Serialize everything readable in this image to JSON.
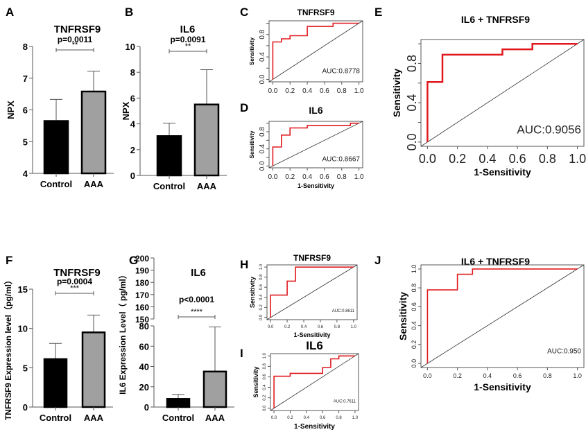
{
  "figure": {
    "panel_labels": [
      "A",
      "B",
      "C",
      "D",
      "E",
      "F",
      "G",
      "H",
      "I",
      "J"
    ]
  },
  "colors": {
    "control_bar": "#000000",
    "aaa_bar": "#a0a0a0",
    "roc_line": "#e0191e",
    "axis": "#555555",
    "diagonal": "#333333"
  },
  "chart_data": [
    {
      "id": "A",
      "type": "bar",
      "title": "TNFRSF9",
      "ylabel": "NPX",
      "xlabel": "",
      "categories": [
        "Control",
        "AAA"
      ],
      "values": [
        5.65,
        6.58
      ],
      "errors": [
        0.68,
        0.64
      ],
      "ylim": [
        4,
        8
      ],
      "yticks": [
        4,
        5,
        6,
        7,
        8
      ],
      "pvalue": "p=0.0011",
      "significance": "**"
    },
    {
      "id": "B",
      "type": "bar",
      "title": "IL6",
      "ylabel": "NPX",
      "xlabel": "",
      "categories": [
        "Control",
        "AAA"
      ],
      "values": [
        3.05,
        5.5
      ],
      "errors": [
        1.0,
        2.7
      ],
      "ylim": [
        0,
        10
      ],
      "yticks": [
        0,
        2,
        4,
        6,
        8,
        10
      ],
      "pvalue": "p=0.0091",
      "significance": "**"
    },
    {
      "id": "C",
      "type": "line",
      "title": "TNFRSF9",
      "xlabel": "1-Sensitivity",
      "ylabel": "Sensitivity",
      "auc": "AUC:0.8778",
      "xlim": [
        0,
        1
      ],
      "ylim": [
        0,
        1
      ],
      "xticks": [
        "0.0",
        "0.2",
        "0.4",
        "0.6",
        "0.8",
        "1.0"
      ],
      "yticks": [
        "0.0",
        "0.4",
        "0.8"
      ],
      "x": [
        0,
        0,
        0.1,
        0.1,
        0.2,
        0.2,
        0.4,
        0.4,
        0.7,
        0.7,
        1.0
      ],
      "y": [
        0,
        0.667,
        0.667,
        0.722,
        0.722,
        0.778,
        0.778,
        0.944,
        0.944,
        1.0,
        1.0
      ]
    },
    {
      "id": "D",
      "type": "line",
      "title": "IL6",
      "xlabel": "1-Sensitivity",
      "ylabel": "Sensitivity",
      "auc": "AUC:0.8667",
      "xlim": [
        0,
        1
      ],
      "ylim": [
        0,
        1
      ],
      "xticks": [
        "0.0",
        "0.2",
        "0.4",
        "0.6",
        "0.8",
        "1.0"
      ],
      "yticks": [
        "0.0",
        "0.4",
        "0.8"
      ],
      "x": [
        0,
        0,
        0.1,
        0.1,
        0.2,
        0.2,
        0.4,
        0.4,
        0.9,
        0.9,
        1.0
      ],
      "y": [
        0,
        0.444,
        0.444,
        0.722,
        0.722,
        0.889,
        0.889,
        0.944,
        0.944,
        1.0,
        1.0
      ]
    },
    {
      "id": "E",
      "type": "line",
      "title": "IL6 + TNFRSF9",
      "xlabel": "1-Sensitivity",
      "ylabel": "Sensitivity",
      "auc": "AUC:0.9056",
      "xlim": [
        0,
        1
      ],
      "ylim": [
        0,
        1
      ],
      "xticks": [
        "0.0",
        "0.2",
        "0.4",
        "0.6",
        "0.8",
        "1.0"
      ],
      "yticks": [
        "0.0",
        "0.4",
        "0.8"
      ],
      "x": [
        0,
        0,
        0.1,
        0.1,
        0.5,
        0.5,
        0.7,
        0.7,
        1.0
      ],
      "y": [
        0,
        0.611,
        0.611,
        0.889,
        0.889,
        0.944,
        0.944,
        1.0,
        1.0
      ]
    },
    {
      "id": "F",
      "type": "bar",
      "title": "TNFRSF9",
      "ylabel": "TNFRSF9 Expression level（pg/ml）",
      "xlabel": "",
      "categories": [
        "Control",
        "AAA"
      ],
      "values": [
        6.1,
        9.5
      ],
      "errors": [
        2.0,
        2.2
      ],
      "ylim": [
        0,
        15
      ],
      "yticks": [
        0,
        5,
        10,
        15
      ],
      "pvalue": "p=0.0004",
      "significance": "***"
    },
    {
      "id": "G",
      "type": "bar",
      "title": "IL6",
      "ylabel": "IL6 Expression Level（ pg/ml）",
      "xlabel": "",
      "categories": [
        "Control",
        "AAA"
      ],
      "values": [
        8,
        35
      ],
      "errors": [
        4.5,
        44
      ],
      "ylim": [
        0,
        80
      ],
      "yticks": [
        0,
        20,
        40,
        60,
        80
      ],
      "broken_axis_upper_ticks": [
        150,
        160,
        170,
        180,
        190,
        200
      ],
      "pvalue": "p<0.0001",
      "significance": "****"
    },
    {
      "id": "H",
      "type": "line",
      "title": "TNFRSF9",
      "xlabel": "1-Sensitivity",
      "ylabel": "Sensitivity",
      "auc": "AUC:0.8611",
      "xlim": [
        0,
        1
      ],
      "ylim": [
        0,
        1
      ],
      "xticks": [
        "0.0",
        "0.2",
        "0.4",
        "0.6",
        "0.8",
        "1.0"
      ],
      "yticks": [
        "0.0",
        "0.2",
        "0.4",
        "0.6",
        "0.8",
        "1.0"
      ],
      "x": [
        0,
        0,
        0.2,
        0.2,
        0.3,
        0.3,
        1.0
      ],
      "y": [
        0,
        0.444,
        0.444,
        0.722,
        0.722,
        1.0,
        1.0
      ]
    },
    {
      "id": "I",
      "type": "line",
      "title": "IL6",
      "xlabel": "1-Sensitivity",
      "ylabel": "Sensitivity",
      "auc": "AUC:0.7611",
      "xlim": [
        0,
        1
      ],
      "ylim": [
        0,
        1
      ],
      "xticks": [
        "0.0",
        "0.2",
        "0.4",
        "0.6",
        "0.8",
        "1.0"
      ],
      "yticks": [
        "0.0",
        "0.2",
        "0.4",
        "0.6",
        "0.8",
        "1.0"
      ],
      "x": [
        0,
        0,
        0.2,
        0.2,
        0.6,
        0.6,
        0.7,
        0.7,
        0.8,
        0.8,
        1.0
      ],
      "y": [
        0,
        0.611,
        0.611,
        0.667,
        0.667,
        0.778,
        0.778,
        0.944,
        0.944,
        1.0,
        1.0
      ]
    },
    {
      "id": "J",
      "type": "line",
      "title": "IL6 + TNFRSF9",
      "xlabel": "1-Sensitivity",
      "ylabel": "Sensitivity",
      "auc": "AUC:0.950",
      "xlim": [
        0,
        1
      ],
      "ylim": [
        0,
        1
      ],
      "xticks": [
        "0.0",
        "0.2",
        "0.4",
        "0.6",
        "0.8",
        "1.0"
      ],
      "yticks": [
        "0.0",
        "0.2",
        "0.4",
        "0.6",
        "0.8",
        "1.0"
      ],
      "x": [
        0,
        0,
        0.2,
        0.2,
        0.3,
        0.3,
        1.0
      ],
      "y": [
        0,
        0.778,
        0.778,
        0.944,
        0.944,
        1.0,
        1.0
      ]
    }
  ]
}
